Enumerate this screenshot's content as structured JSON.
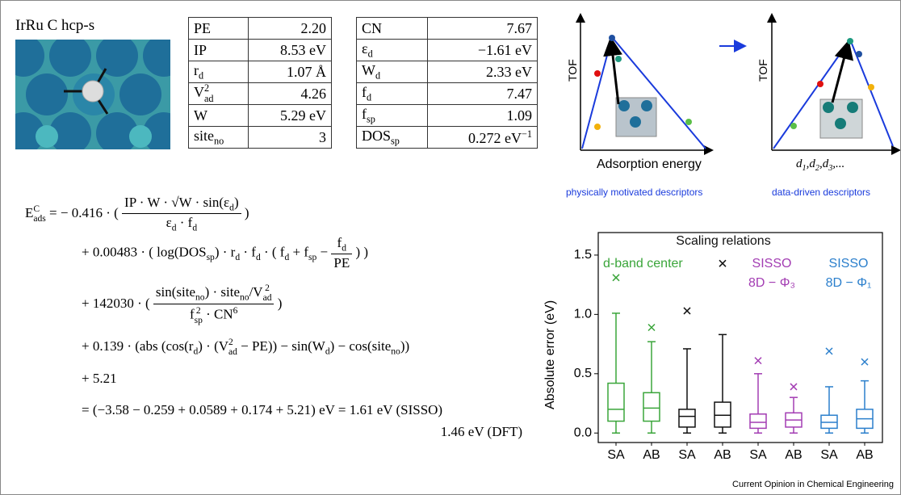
{
  "panel_label": "IrRu C hcp-s",
  "table1": {
    "rows": [
      [
        [
          "PE"
        ],
        [
          "2.20"
        ]
      ],
      [
        [
          "IP"
        ],
        [
          "8.53 eV"
        ]
      ],
      [
        [
          "r",
          {
            "sub": "d"
          }
        ],
        [
          "1.07 Å"
        ]
      ],
      [
        [
          "V",
          {
            "sup": "2",
            "sub": "ad"
          }
        ],
        [
          "4.26"
        ]
      ],
      [
        [
          "W"
        ],
        [
          "5.29 eV"
        ]
      ],
      [
        [
          "site",
          {
            "sub": "no"
          }
        ],
        [
          "3"
        ]
      ]
    ]
  },
  "table2": {
    "rows": [
      [
        [
          "CN"
        ],
        [
          "7.67"
        ]
      ],
      [
        [
          "ε",
          {
            "sub": "d"
          }
        ],
        [
          "−1.61 eV"
        ]
      ],
      [
        [
          "W",
          {
            "sub": "d"
          }
        ],
        [
          "2.33 eV"
        ]
      ],
      [
        [
          "f",
          {
            "sub": "d"
          }
        ],
        [
          "7.47"
        ]
      ],
      [
        [
          "f",
          {
            "sub": "sp"
          }
        ],
        [
          "1.09"
        ]
      ],
      [
        [
          "DOS",
          {
            "sub": "sp"
          }
        ],
        [
          "0.272 eV",
          {
            "sup": "−1"
          }
        ]
      ]
    ]
  },
  "equation": {
    "lines": [
      [
        "E",
        {
          "sup": "C",
          "sub": "ads"
        },
        " = − 0.416 · ( ",
        {
          "frac": {
            "num": [
              "IP · W · √W · sin(ε",
              {
                "sub": "d"
              },
              ")"
            ],
            "den": [
              "ε",
              {
                "sub": "d"
              },
              " · f",
              {
                "sub": "d"
              }
            ]
          }
        },
        " )"
      ],
      [
        "+ 0.00483 · ( log(DOS",
        {
          "sub": "sp"
        },
        ") · r",
        {
          "sub": "d"
        },
        " · f",
        {
          "sub": "d"
        },
        " · ( f",
        {
          "sub": "d"
        },
        " + f",
        {
          "sub": "sp"
        },
        " − ",
        {
          "frac": {
            "num": [
              "f",
              {
                "sub": "d"
              }
            ],
            "den": [
              "PE"
            ]
          }
        },
        " ) )"
      ],
      [
        "+ 142030 · ( ",
        {
          "frac": {
            "num": [
              "sin(site",
              {
                "sub": "no"
              },
              ") · site",
              {
                "sub": "no"
              },
              "/V",
              {
                "sup": "2",
                "sub": "ad"
              }
            ],
            "den": [
              "f",
              {
                "sup": "2",
                "sub": "sp"
              },
              " · CN",
              {
                "sup": "6"
              }
            ]
          }
        },
        " )"
      ],
      [
        "+ 0.139 · (abs (cos(r",
        {
          "sub": "d"
        },
        ") · (V",
        {
          "sup": "2",
          "sub": "ad"
        },
        " − PE)) − sin(W",
        {
          "sub": "d"
        },
        ") − cos(site",
        {
          "sub": "no"
        },
        "))"
      ],
      [
        "+ 5.21"
      ],
      [
        "= (−3.58 − 0.259 + 0.0589 + 0.174 + 5.21) eV = 1.61 eV (SISSO)"
      ],
      [
        "1.46 eV (DFT)"
      ]
    ]
  },
  "diagram": {
    "left_ylabel": "TOF",
    "left_xlabel": "Adsorption energy",
    "left_caption": "physically motivated descriptors",
    "right_ylabel": "TOF",
    "right_xlabel": [
      "d",
      {
        "sub": "1"
      },
      ",d",
      {
        "sub": "2"
      },
      ",d",
      {
        "sub": "3"
      },
      ",..."
    ],
    "right_caption": "data-driven descriptors"
  },
  "chart_data": {
    "type": "box",
    "ylabel": "Absolute error (eV)",
    "categories": [
      "SA",
      "AB",
      "SA",
      "AB",
      "SA",
      "AB",
      "SA",
      "AB"
    ],
    "colors": [
      "#3aa53a",
      "#3aa53a",
      "#111111",
      "#111111",
      "#a33db3",
      "#a33db3",
      "#2b7fcc",
      "#2b7fcc"
    ],
    "min": [
      0.0,
      0.0,
      0.0,
      0.0,
      0.0,
      0.0,
      0.0,
      0.0
    ],
    "q1": [
      0.1,
      0.1,
      0.05,
      0.05,
      0.04,
      0.05,
      0.04,
      0.04
    ],
    "median": [
      0.2,
      0.21,
      0.14,
      0.15,
      0.09,
      0.11,
      0.09,
      0.12
    ],
    "q3": [
      0.42,
      0.34,
      0.2,
      0.26,
      0.16,
      0.17,
      0.15,
      0.2
    ],
    "max": [
      1.01,
      0.77,
      0.71,
      0.83,
      0.5,
      0.3,
      0.39,
      0.44
    ],
    "outliers": [
      1.31,
      0.89,
      1.03,
      1.43,
      0.61,
      0.39,
      0.69,
      0.6
    ],
    "ylim": [
      -0.08,
      1.69
    ],
    "yticks": [
      {
        "value": 0,
        "label": "0.0"
      },
      0.5,
      {
        "value": 1,
        "label": "1.0"
      },
      1.5
    ],
    "annotations": [
      "Scaling relations",
      "d-band center",
      "SISSO",
      "8D − Φ₃",
      "SISSO",
      "8D − Φ₁"
    ]
  },
  "footer": "Current Opinion in Chemical Engineering"
}
